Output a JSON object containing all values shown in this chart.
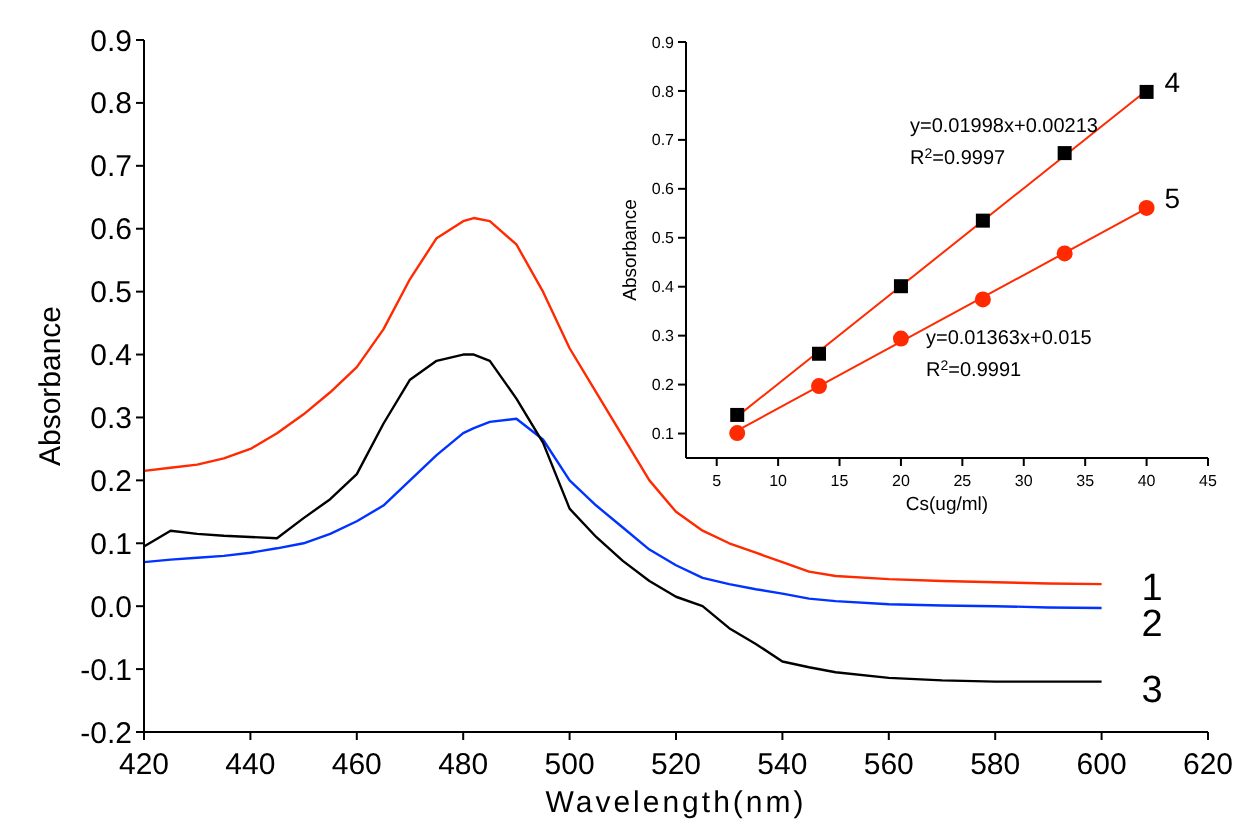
{
  "chart_data": [
    {
      "type": "line",
      "xlabel": "Wavelength(nm)",
      "ylabel": "Absorbance",
      "xlim": [
        420,
        620
      ],
      "xticks": [
        420,
        440,
        460,
        480,
        500,
        520,
        540,
        560,
        580,
        600,
        620
      ],
      "ylim": [
        -0.2,
        0.9
      ],
      "yticks": [
        -0.2,
        -0.1,
        {
          "value": 0,
          "label": "0.0"
        },
        0.1,
        0.2,
        0.3,
        0.4,
        0.5,
        0.6,
        0.7,
        0.8,
        0.9
      ],
      "x": [
        420,
        425,
        430,
        435,
        440,
        445,
        450,
        455,
        460,
        465,
        470,
        475,
        480,
        482,
        485,
        490,
        495,
        500,
        505,
        510,
        515,
        520,
        525,
        530,
        535,
        540,
        545,
        550,
        560,
        570,
        580,
        590,
        600
      ],
      "series": [
        {
          "name": "1",
          "color": "#ff2a00",
          "values": [
            0.215,
            0.22,
            0.225,
            0.235,
            0.25,
            0.275,
            0.305,
            0.34,
            0.38,
            0.44,
            0.52,
            0.585,
            0.612,
            0.617,
            0.612,
            0.575,
            0.5,
            0.41,
            0.34,
            0.27,
            0.2,
            0.15,
            0.12,
            0.1,
            0.085,
            0.07,
            0.055,
            0.048,
            0.043,
            0.04,
            0.038,
            0.036,
            0.035
          ]
        },
        {
          "name": "2",
          "color": "#0033ff",
          "values": [
            0.07,
            0.074,
            0.077,
            0.08,
            0.085,
            0.092,
            0.1,
            0.115,
            0.135,
            0.16,
            0.2,
            0.24,
            0.275,
            0.283,
            0.293,
            0.298,
            0.265,
            0.2,
            0.16,
            0.125,
            0.09,
            0.065,
            0.045,
            0.035,
            0.027,
            0.02,
            0.012,
            0.008,
            0.003,
            0.001,
            0,
            -0.002,
            -0.003
          ]
        },
        {
          "name": "3",
          "color": "#000000",
          "values": [
            0.095,
            0.12,
            0.115,
            0.112,
            0.11,
            0.108,
            0.14,
            0.17,
            0.21,
            0.29,
            0.36,
            0.39,
            0.4,
            0.4,
            0.39,
            0.33,
            0.26,
            0.155,
            0.11,
            0.072,
            0.04,
            0.015,
            0,
            -0.035,
            -0.06,
            -0.088,
            -0.097,
            -0.105,
            -0.114,
            -0.118,
            -0.12,
            -0.12,
            -0.12
          ]
        }
      ]
    },
    {
      "type": "scatter",
      "xlabel": "Cs(ug/ml)",
      "ylabel": "Absorbance",
      "xlim": [
        2.5,
        45
      ],
      "xticks": [
        5,
        10,
        15,
        20,
        25,
        30,
        35,
        40,
        45
      ],
      "ylim": [
        0.05,
        0.9
      ],
      "yticks": [
        0.1,
        0.2,
        0.3,
        0.4,
        0.5,
        0.6,
        0.7,
        0.8,
        0.9
      ],
      "annotations": [
        "y=0.01998x+0.00213",
        "R$^{2}$=0.9997",
        "y=0.01363x+0.015",
        "R$^{2}$=0.9991"
      ],
      "series": [
        {
          "type": "line",
          "color": "#ff2a00",
          "x": [
            6.67,
            40
          ],
          "values": [
            0.135,
            0.801
          ]
        },
        {
          "type": "line",
          "color": "#ff2a00",
          "x": [
            6.67,
            40
          ],
          "values": [
            0.106,
            0.56
          ]
        },
        {
          "name": "4",
          "color": "#000000",
          "marker": "square",
          "x": [
            6.67,
            13.33,
            20,
            26.67,
            33.33,
            40
          ],
          "values": [
            0.138,
            0.263,
            0.401,
            0.535,
            0.673,
            0.798
          ]
        },
        {
          "name": "5",
          "color": "#ff2a00",
          "marker": "circle",
          "x": [
            6.67,
            13.33,
            20,
            26.67,
            33.33,
            40
          ],
          "values": [
            0.101,
            0.197,
            0.294,
            0.374,
            0.468,
            0.561
          ]
        }
      ]
    }
  ]
}
